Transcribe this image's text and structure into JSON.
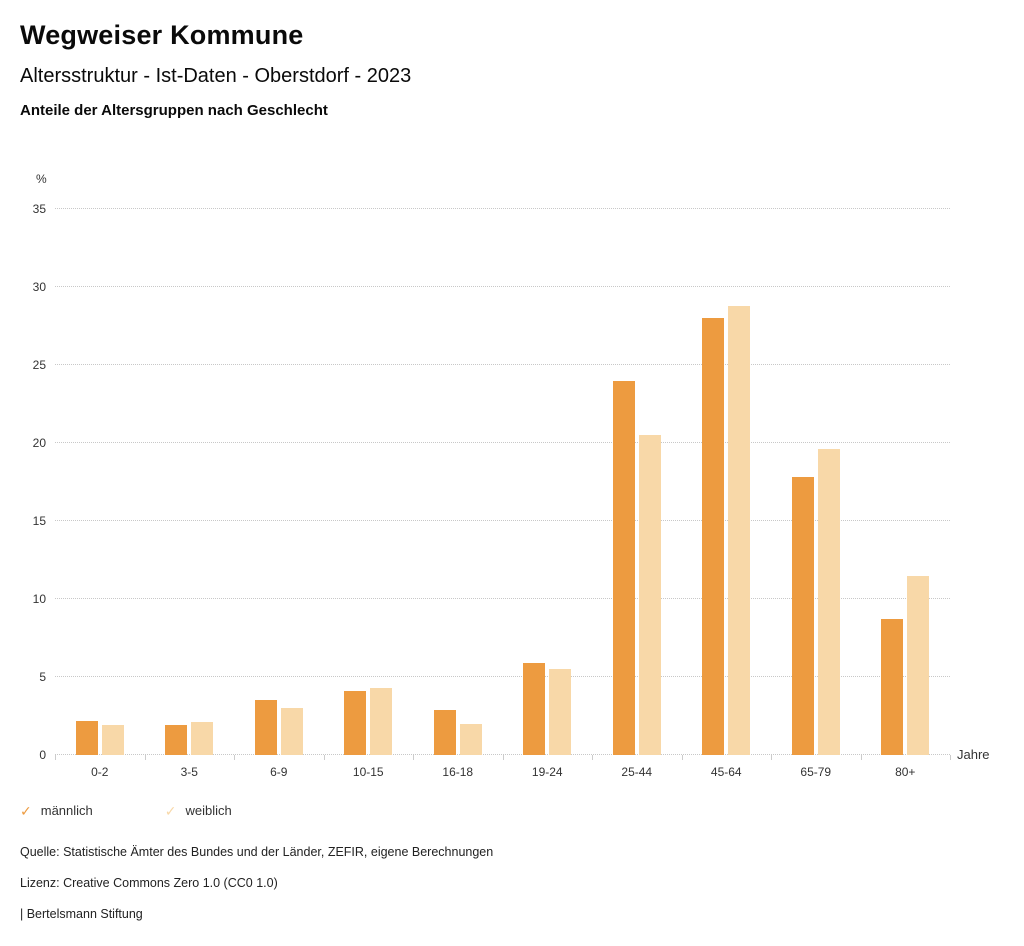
{
  "header": {
    "title": "Wegweiser Kommune",
    "subtitle": "Altersstruktur - Ist-Daten - Oberstdorf - 2023",
    "chart_heading": "Anteile der Altersgruppen nach Geschlecht"
  },
  "chart_data": {
    "type": "bar",
    "title": "Anteile der Altersgruppen nach Geschlecht",
    "categories": [
      "0-2",
      "3-5",
      "6-9",
      "10-15",
      "16-18",
      "19-24",
      "25-44",
      "45-64",
      "65-79",
      "80+"
    ],
    "series": [
      {
        "name": "männlich",
        "color": "#ED9B40",
        "values": [
          2.2,
          1.9,
          3.5,
          4.1,
          2.9,
          5.9,
          24.0,
          28.0,
          17.8,
          8.7
        ]
      },
      {
        "name": "weiblich",
        "color": "#F8D8A8",
        "values": [
          1.9,
          2.1,
          3.0,
          4.3,
          2.0,
          5.5,
          20.5,
          28.8,
          19.6,
          11.5
        ]
      }
    ],
    "xlabel": "Jahre",
    "ylabel": "%",
    "ylim": [
      0,
      35
    ],
    "ytick_step": 5,
    "grid": true,
    "legend_position": "bottom",
    "legend_marker": "✓"
  },
  "footer": {
    "source": "Quelle: Statistische Ämter des Bundes und der Länder, ZEFIR, eigene Berechnungen",
    "license": "Lizenz: Creative Commons Zero 1.0 (CC0 1.0)",
    "brand": "| Bertelsmann Stiftung"
  }
}
